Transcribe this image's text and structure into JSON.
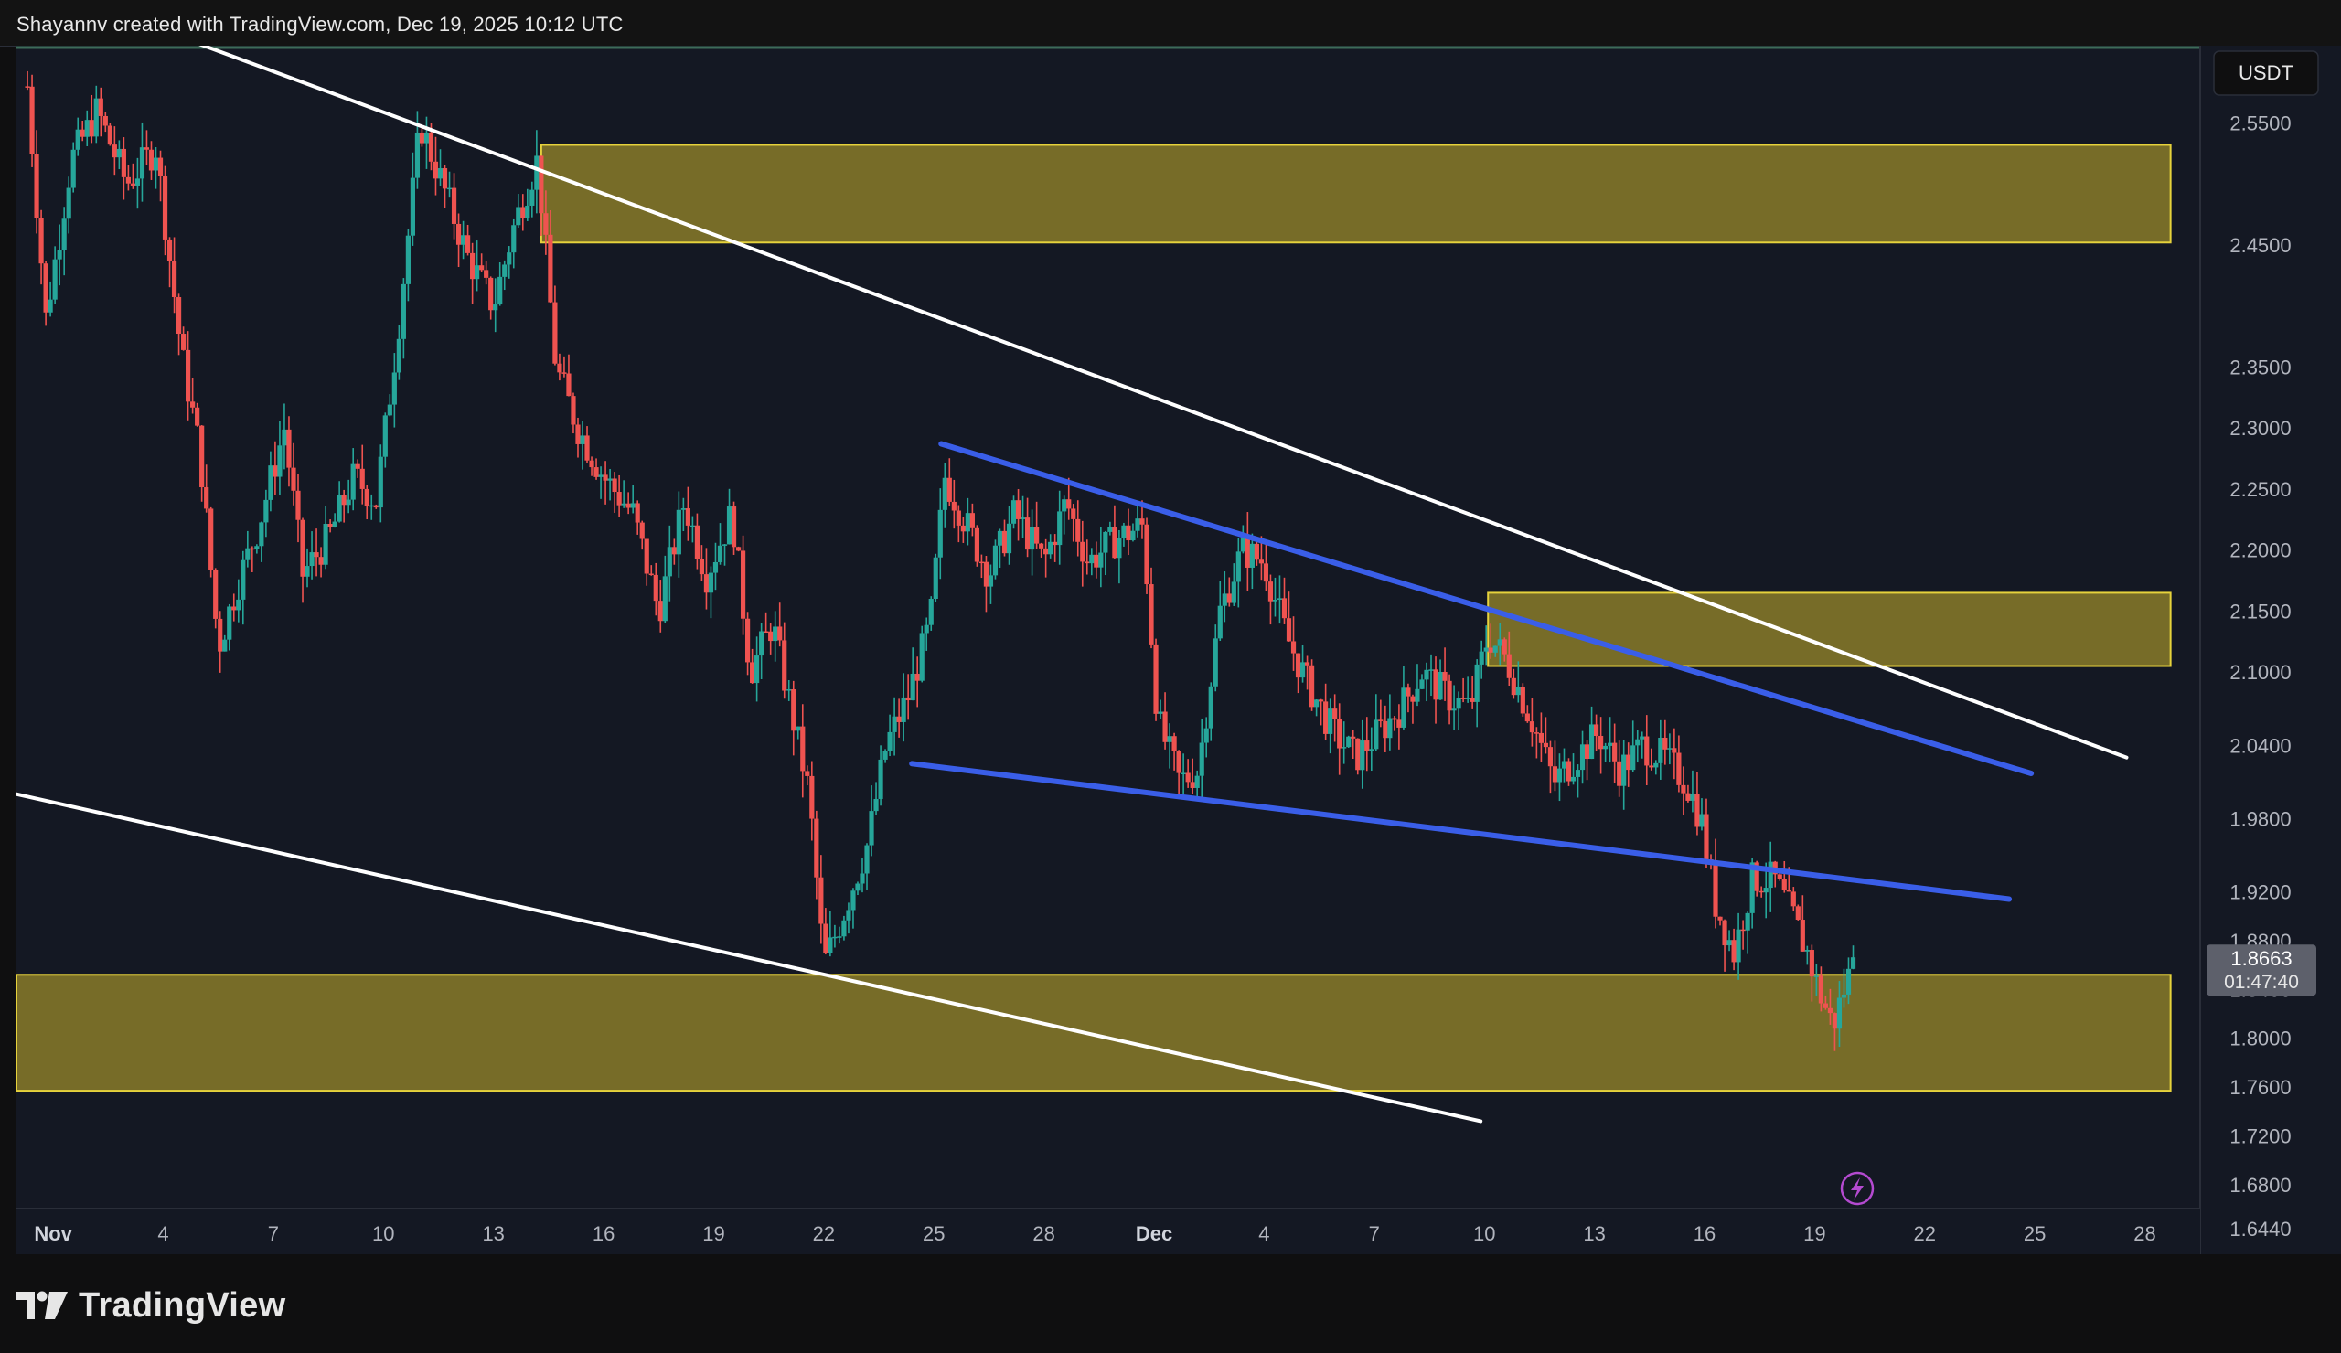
{
  "header": {
    "attribution": "Shayannv created with TradingView.com, Dec 19, 2025 10:12 UTC"
  },
  "footer": {
    "brand": "TradingView"
  },
  "chart_data": {
    "type": "candlestick",
    "currency_label": "USDT",
    "price_axis": {
      "range": [
        1.62,
        2.62
      ],
      "ticks": [
        "2.5500",
        "2.4500",
        "2.3500",
        "2.3000",
        "2.2500",
        "2.2000",
        "2.1500",
        "2.1000",
        "2.0400",
        "1.9800",
        "1.9200",
        "1.8800",
        "1.8400",
        "1.8000",
        "1.7600",
        "1.7200",
        "1.6800",
        "1.6440"
      ]
    },
    "time_axis": {
      "range_days": [
        0,
        58
      ],
      "ticks": [
        {
          "label": "Nov",
          "day": 1,
          "bold": true
        },
        {
          "label": "4",
          "day": 4
        },
        {
          "label": "7",
          "day": 7
        },
        {
          "label": "10",
          "day": 10
        },
        {
          "label": "13",
          "day": 13
        },
        {
          "label": "16",
          "day": 16
        },
        {
          "label": "19",
          "day": 19
        },
        {
          "label": "22",
          "day": 22
        },
        {
          "label": "25",
          "day": 25
        },
        {
          "label": "28",
          "day": 28
        },
        {
          "label": "Dec",
          "day": 31,
          "bold": true
        },
        {
          "label": "4",
          "day": 34
        },
        {
          "label": "7",
          "day": 37
        },
        {
          "label": "10",
          "day": 40
        },
        {
          "label": "13",
          "day": 43
        },
        {
          "label": "16",
          "day": 46
        },
        {
          "label": "19",
          "day": 49
        },
        {
          "label": "22",
          "day": 52
        },
        {
          "label": "25",
          "day": 55
        },
        {
          "label": "28",
          "day": 58
        }
      ]
    },
    "last_price": {
      "price": "1.8663",
      "countdown": "01:47:40",
      "value": 1.8663
    },
    "colors": {
      "up": "#26a69a",
      "down": "#ef5350",
      "zone_fill": "#c9b22e",
      "zone_border": "#e6d23c",
      "channel": "#ffffff",
      "wedge": "#3a5ee8",
      "background": "#141823"
    },
    "zones": [
      {
        "day_start": 14.3,
        "day_end": 58.7,
        "price_low": 2.452,
        "price_high": 2.532
      },
      {
        "day_start": 40.1,
        "day_end": 58.7,
        "price_low": 2.105,
        "price_high": 2.165
      },
      {
        "day_start": 0,
        "day_end": 58.7,
        "price_low": 1.757,
        "price_high": 1.852
      }
    ],
    "trendlines": [
      {
        "role": "channel-upper",
        "from": {
          "day": 4.5,
          "price": 2.62
        },
        "to": {
          "day": 57.5,
          "price": 2.03
        }
      },
      {
        "role": "channel-lower",
        "from": {
          "day": 0.0,
          "price": 2.0
        },
        "to": {
          "day": 39.9,
          "price": 1.732
        }
      },
      {
        "role": "wedge-upper",
        "from": {
          "day": 25.2,
          "price": 2.287
        },
        "to": {
          "day": 54.9,
          "price": 2.017
        }
      },
      {
        "role": "wedge-lower",
        "from": {
          "day": 24.4,
          "price": 2.025
        },
        "to": {
          "day": 54.3,
          "price": 1.914
        }
      }
    ],
    "close_path": [
      [
        0.3,
        2.58
      ],
      [
        0.8,
        2.39
      ],
      [
        1.5,
        2.52
      ],
      [
        2.2,
        2.56
      ],
      [
        3.0,
        2.5
      ],
      [
        3.8,
        2.53
      ],
      [
        4.5,
        2.36
      ],
      [
        5.0,
        2.28
      ],
      [
        5.5,
        2.12
      ],
      [
        6.0,
        2.17
      ],
      [
        6.6,
        2.22
      ],
      [
        7.3,
        2.3
      ],
      [
        7.8,
        2.18
      ],
      [
        8.5,
        2.21
      ],
      [
        9.2,
        2.26
      ],
      [
        9.8,
        2.24
      ],
      [
        10.4,
        2.38
      ],
      [
        11.0,
        2.55
      ],
      [
        11.6,
        2.5
      ],
      [
        12.3,
        2.44
      ],
      [
        13.0,
        2.4
      ],
      [
        13.6,
        2.47
      ],
      [
        14.2,
        2.52
      ],
      [
        14.7,
        2.35
      ],
      [
        15.3,
        2.3
      ],
      [
        16.0,
        2.26
      ],
      [
        16.8,
        2.23
      ],
      [
        17.5,
        2.15
      ],
      [
        18.2,
        2.24
      ],
      [
        18.8,
        2.18
      ],
      [
        19.5,
        2.23
      ],
      [
        20.0,
        2.1
      ],
      [
        20.6,
        2.14
      ],
      [
        21.1,
        2.07
      ],
      [
        21.6,
        2.0
      ],
      [
        22.0,
        1.86
      ],
      [
        22.5,
        1.9
      ],
      [
        23.2,
        1.96
      ],
      [
        23.7,
        2.04
      ],
      [
        24.3,
        2.08
      ],
      [
        24.9,
        2.14
      ],
      [
        25.3,
        2.26
      ],
      [
        25.9,
        2.22
      ],
      [
        26.5,
        2.18
      ],
      [
        27.2,
        2.23
      ],
      [
        28.0,
        2.19
      ],
      [
        28.6,
        2.24
      ],
      [
        29.2,
        2.19
      ],
      [
        30.0,
        2.21
      ],
      [
        30.7,
        2.22
      ],
      [
        31.1,
        2.06
      ],
      [
        31.7,
        2.01
      ],
      [
        32.2,
        2.02
      ],
      [
        32.8,
        2.15
      ],
      [
        33.4,
        2.2
      ],
      [
        34.0,
        2.19
      ],
      [
        34.6,
        2.13
      ],
      [
        35.2,
        2.09
      ],
      [
        35.9,
        2.05
      ],
      [
        36.5,
        2.03
      ],
      [
        37.1,
        2.05
      ],
      [
        37.7,
        2.07
      ],
      [
        38.3,
        2.1
      ],
      [
        39.0,
        2.08
      ],
      [
        39.6,
        2.07
      ],
      [
        40.1,
        2.13
      ],
      [
        40.6,
        2.11
      ],
      [
        41.3,
        2.06
      ],
      [
        41.9,
        2.01
      ],
      [
        42.5,
        2.03
      ],
      [
        43.1,
        2.05
      ],
      [
        43.7,
        2.02
      ],
      [
        44.3,
        2.04
      ],
      [
        44.9,
        2.03
      ],
      [
        45.5,
        2.01
      ],
      [
        45.9,
        1.98
      ],
      [
        46.3,
        1.91
      ],
      [
        46.8,
        1.87
      ],
      [
        47.3,
        1.93
      ],
      [
        47.9,
        1.93
      ],
      [
        48.4,
        1.9
      ],
      [
        48.8,
        1.87
      ],
      [
        49.1,
        1.84
      ],
      [
        49.5,
        1.81
      ],
      [
        49.8,
        1.84
      ],
      [
        50.1,
        1.8663
      ]
    ]
  }
}
